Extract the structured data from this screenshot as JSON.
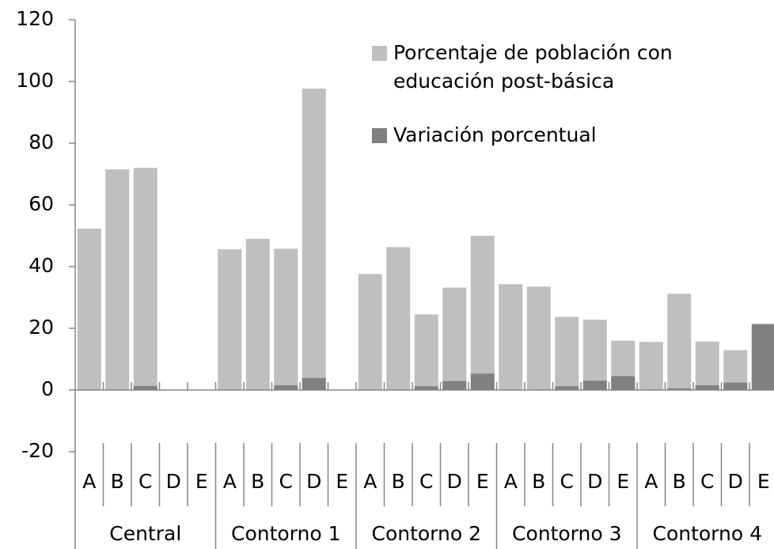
{
  "chart_data": {
    "type": "bar",
    "categories": [
      "A",
      "B",
      "C",
      "D",
      "E",
      "A",
      "B",
      "C",
      "D",
      "E",
      "A",
      "B",
      "C",
      "D",
      "E",
      "A",
      "B",
      "C",
      "D",
      "E",
      "A",
      "B",
      "C",
      "D",
      "E"
    ],
    "groups": [
      "Central",
      "Contorno 1",
      "Contorno 2",
      "Contorno 3",
      "Contorno 4"
    ],
    "series": [
      {
        "name": "Porcentaje de población con educación post-básica",
        "color": "#bfbfbf",
        "values": [
          52.3,
          71.5,
          72,
          null,
          null,
          45.6,
          49,
          45.8,
          97.7,
          null,
          37.6,
          46.3,
          24.5,
          33.2,
          50,
          34.3,
          33.5,
          23.7,
          22.8,
          16,
          15.6,
          31.2,
          15.7,
          12.9,
          null
        ]
      },
      {
        "name": "Variación porcentual",
        "color": "#808080",
        "values": [
          0,
          0,
          1.3,
          null,
          null,
          0,
          0,
          1.5,
          3.9,
          null,
          0,
          0,
          1.2,
          2.9,
          5.3,
          0,
          0,
          1.2,
          3.0,
          4.5,
          0,
          0.5,
          1.5,
          2.4,
          21.4
        ]
      }
    ],
    "ylim": [
      -20,
      120
    ],
    "yticks": [
      -20,
      0,
      20,
      40,
      60,
      80,
      100,
      120
    ],
    "legend": "top-right"
  }
}
